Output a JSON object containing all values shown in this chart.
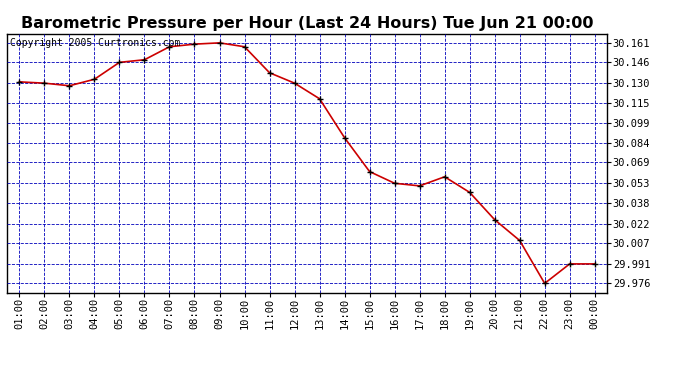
{
  "title": "Barometric Pressure per Hour (Last 24 Hours) Tue Jun 21 00:00",
  "copyright": "Copyright 2005 Curtronics.com",
  "x_labels": [
    "01:00",
    "02:00",
    "03:00",
    "04:00",
    "05:00",
    "06:00",
    "07:00",
    "08:00",
    "09:00",
    "10:00",
    "11:00",
    "12:00",
    "13:00",
    "14:00",
    "15:00",
    "16:00",
    "17:00",
    "18:00",
    "19:00",
    "20:00",
    "21:00",
    "22:00",
    "23:00",
    "00:00"
  ],
  "y_values": [
    30.131,
    30.13,
    30.128,
    30.133,
    30.146,
    30.148,
    30.158,
    30.16,
    30.161,
    30.158,
    30.138,
    30.13,
    30.118,
    30.088,
    30.062,
    30.053,
    30.051,
    30.058,
    30.046,
    30.025,
    30.009,
    29.976,
    29.991,
    29.991
  ],
  "y_tick_labels": [
    "30.161",
    "30.146",
    "30.130",
    "30.115",
    "30.099",
    "30.084",
    "30.069",
    "30.053",
    "30.038",
    "30.022",
    "30.007",
    "29.991",
    "29.976"
  ],
  "y_tick_values": [
    30.161,
    30.146,
    30.13,
    30.115,
    30.099,
    30.084,
    30.069,
    30.053,
    30.038,
    30.022,
    30.007,
    29.991,
    29.976
  ],
  "y_min": 29.969,
  "y_max": 30.168,
  "line_color": "#cc0000",
  "marker_color": "#000000",
  "bg_color": "#ffffff",
  "plot_bg_color": "#ffffff",
  "grid_color": "#0000bb",
  "title_fontsize": 11.5,
  "copyright_fontsize": 7,
  "tick_fontsize": 7.5
}
